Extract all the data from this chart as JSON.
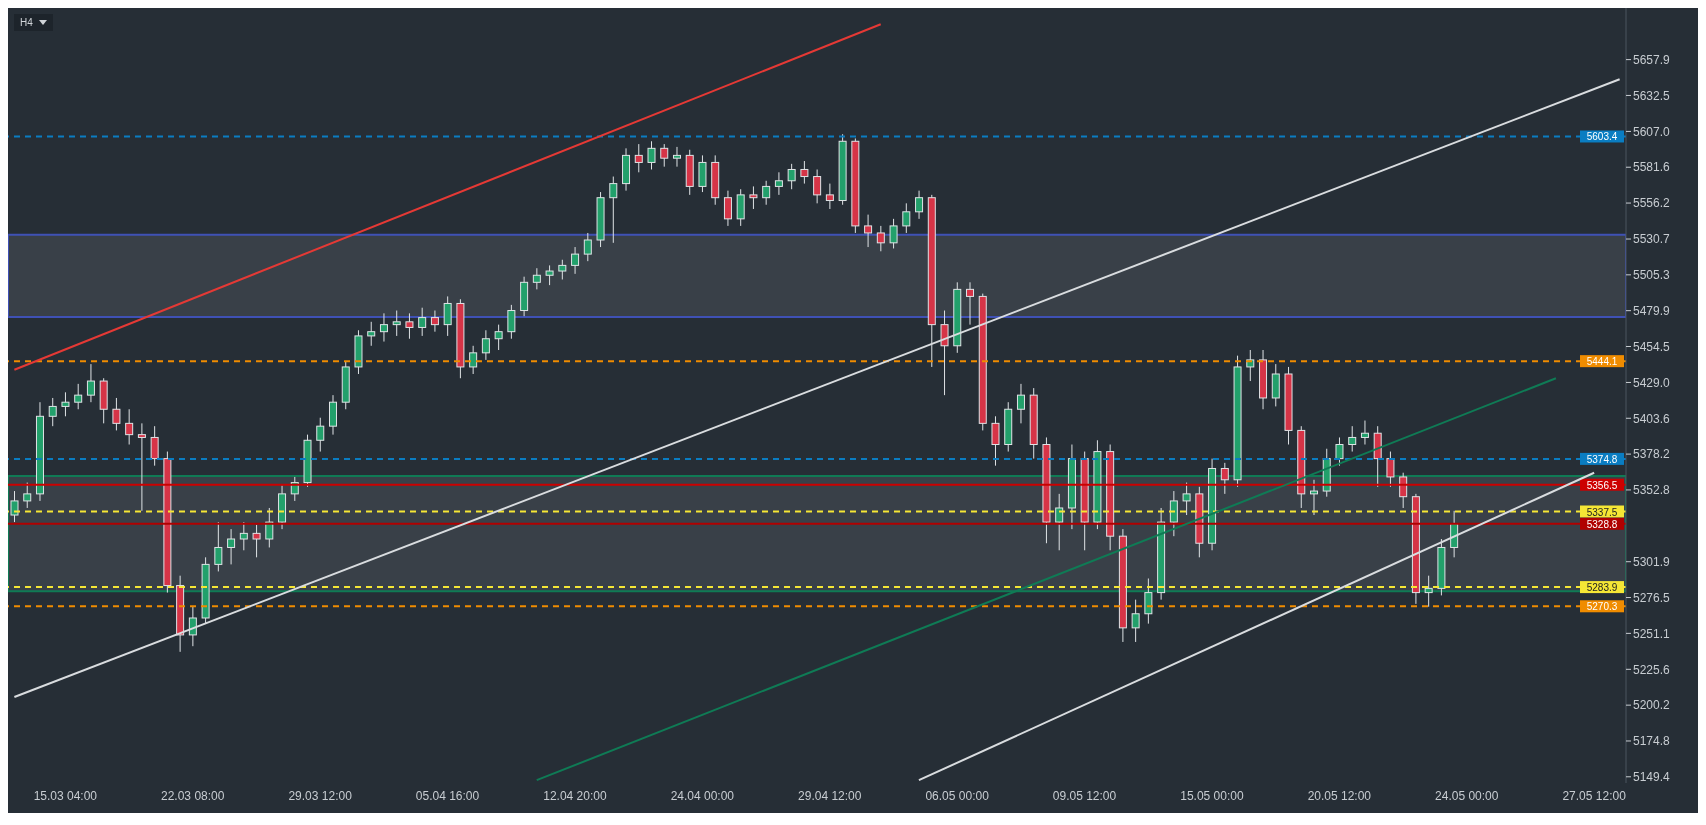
{
  "chart_data": {
    "type": "candlestick",
    "categories": [
      null,
      null,
      null,
      null,
      "15.03 04:00",
      null,
      null,
      null,
      null,
      null,
      null,
      null,
      null,
      null,
      "22.03 08:00",
      null,
      null,
      null,
      null,
      null,
      null,
      null,
      null,
      null,
      "29.03 12:00",
      null,
      null,
      null,
      null,
      null,
      null,
      null,
      null,
      null,
      "05.04 16:00",
      null,
      null,
      null,
      null,
      null,
      null,
      null,
      null,
      null,
      "12.04 20:00",
      null,
      null,
      null,
      null,
      null,
      null,
      null,
      null,
      null,
      "24.04 00:00",
      null,
      null,
      null,
      null,
      null,
      null,
      null,
      null,
      null,
      "29.04 12:00",
      null,
      null,
      null,
      null,
      null,
      null,
      null,
      null,
      null,
      "06.05 00:00",
      null,
      null,
      null,
      null,
      null,
      null,
      null,
      null,
      null,
      "09.05 12:00",
      null,
      null,
      null,
      null,
      null,
      null,
      null,
      null,
      null,
      "15.05 00:00",
      null,
      null,
      null,
      null,
      null,
      null,
      null,
      null,
      null,
      "20.05 12:00",
      null,
      null,
      null,
      null,
      null,
      null,
      null,
      null,
      null,
      "24.05 00:00",
      null,
      null,
      null,
      null,
      null,
      null,
      null,
      null,
      null,
      "27.05 12:00",
      null,
      null
    ],
    "ohlc": [
      [
        5335,
        5352,
        5330,
        5345
      ],
      [
        5345,
        5358,
        5340,
        5350
      ],
      [
        5350,
        5415,
        5345,
        5405
      ],
      [
        5405,
        5418,
        5398,
        5412
      ],
      [
        5412,
        5422,
        5405,
        5415
      ],
      [
        5415,
        5428,
        5410,
        5420
      ],
      [
        5420,
        5442,
        5415,
        5430
      ],
      [
        5430,
        5432,
        5400,
        5410
      ],
      [
        5410,
        5418,
        5395,
        5400
      ],
      [
        5400,
        5410,
        5385,
        5392
      ],
      [
        5392,
        5400,
        5338,
        5390
      ],
      [
        5390,
        5398,
        5370,
        5375
      ],
      [
        5375,
        5380,
        5280,
        5285
      ],
      [
        5285,
        5292,
        5238,
        5250
      ],
      [
        5250,
        5270,
        5242,
        5262
      ],
      [
        5262,
        5305,
        5258,
        5300
      ],
      [
        5300,
        5330,
        5295,
        5312
      ],
      [
        5312,
        5325,
        5300,
        5318
      ],
      [
        5318,
        5330,
        5310,
        5322
      ],
      [
        5322,
        5328,
        5305,
        5318
      ],
      [
        5318,
        5340,
        5312,
        5330
      ],
      [
        5330,
        5356,
        5325,
        5350
      ],
      [
        5350,
        5362,
        5345,
        5358
      ],
      [
        5358,
        5392,
        5355,
        5388
      ],
      [
        5388,
        5404,
        5380,
        5398
      ],
      [
        5398,
        5420,
        5392,
        5415
      ],
      [
        5415,
        5444,
        5410,
        5440
      ],
      [
        5440,
        5466,
        5435,
        5462
      ],
      [
        5462,
        5472,
        5455,
        5465
      ],
      [
        5465,
        5478,
        5458,
        5470
      ],
      [
        5470,
        5480,
        5462,
        5472
      ],
      [
        5472,
        5478,
        5460,
        5468
      ],
      [
        5468,
        5482,
        5462,
        5475
      ],
      [
        5475,
        5480,
        5465,
        5470
      ],
      [
        5470,
        5490,
        5462,
        5485
      ],
      [
        5485,
        5488,
        5432,
        5440
      ],
      [
        5440,
        5455,
        5435,
        5450
      ],
      [
        5450,
        5466,
        5445,
        5460
      ],
      [
        5460,
        5470,
        5452,
        5465
      ],
      [
        5465,
        5484,
        5460,
        5480
      ],
      [
        5480,
        5504,
        5476,
        5500
      ],
      [
        5500,
        5510,
        5495,
        5505
      ],
      [
        5505,
        5512,
        5498,
        5508
      ],
      [
        5508,
        5516,
        5502,
        5512
      ],
      [
        5512,
        5525,
        5506,
        5520
      ],
      [
        5520,
        5535,
        5515,
        5530
      ],
      [
        5530,
        5564,
        5525,
        5560
      ],
      [
        5560,
        5575,
        5528,
        5570
      ],
      [
        5570,
        5595,
        5565,
        5590
      ],
      [
        5590,
        5598,
        5578,
        5585
      ],
      [
        5585,
        5600,
        5580,
        5595
      ],
      [
        5595,
        5598,
        5582,
        5588
      ],
      [
        5588,
        5596,
        5582,
        5590
      ],
      [
        5590,
        5594,
        5562,
        5568
      ],
      [
        5568,
        5590,
        5564,
        5585
      ],
      [
        5585,
        5590,
        5555,
        5560
      ],
      [
        5560,
        5565,
        5540,
        5545
      ],
      [
        5545,
        5566,
        5540,
        5562
      ],
      [
        5562,
        5568,
        5552,
        5560
      ],
      [
        5560,
        5572,
        5555,
        5568
      ],
      [
        5568,
        5578,
        5562,
        5572
      ],
      [
        5572,
        5584,
        5566,
        5580
      ],
      [
        5580,
        5586,
        5570,
        5575
      ],
      [
        5575,
        5580,
        5556,
        5562
      ],
      [
        5562,
        5570,
        5552,
        5558
      ],
      [
        5558,
        5605,
        5555,
        5600
      ],
      [
        5600,
        5602,
        5535,
        5540
      ],
      [
        5540,
        5548,
        5525,
        5535
      ],
      [
        5535,
        5540,
        5522,
        5528
      ],
      [
        5528,
        5545,
        5524,
        5540
      ],
      [
        5540,
        5556,
        5535,
        5550
      ],
      [
        5550,
        5565,
        5545,
        5560
      ],
      [
        5560,
        5562,
        5440,
        5470
      ],
      [
        5470,
        5480,
        5420,
        5455
      ],
      [
        5455,
        5500,
        5450,
        5495
      ],
      [
        5495,
        5500,
        5470,
        5490
      ],
      [
        5490,
        5492,
        5395,
        5400
      ],
      [
        5400,
        5405,
        5370,
        5385
      ],
      [
        5385,
        5415,
        5380,
        5410
      ],
      [
        5410,
        5428,
        5400,
        5420
      ],
      [
        5420,
        5425,
        5375,
        5385
      ],
      [
        5385,
        5390,
        5315,
        5330
      ],
      [
        5330,
        5350,
        5310,
        5340
      ],
      [
        5340,
        5385,
        5325,
        5375
      ],
      [
        5375,
        5380,
        5310,
        5330
      ],
      [
        5330,
        5388,
        5325,
        5380
      ],
      [
        5380,
        5385,
        5310,
        5320
      ],
      [
        5320,
        5325,
        5245,
        5255
      ],
      [
        5255,
        5275,
        5245,
        5265
      ],
      [
        5265,
        5290,
        5258,
        5280
      ],
      [
        5280,
        5340,
        5275,
        5330
      ],
      [
        5330,
        5352,
        5320,
        5345
      ],
      [
        5345,
        5358,
        5335,
        5350
      ],
      [
        5350,
        5355,
        5305,
        5315
      ],
      [
        5315,
        5375,
        5310,
        5368
      ],
      [
        5368,
        5372,
        5350,
        5360
      ],
      [
        5360,
        5448,
        5355,
        5440
      ],
      [
        5440,
        5452,
        5430,
        5445
      ],
      [
        5445,
        5452,
        5410,
        5418
      ],
      [
        5418,
        5442,
        5412,
        5435
      ],
      [
        5435,
        5440,
        5385,
        5395
      ],
      [
        5395,
        5398,
        5340,
        5350
      ],
      [
        5350,
        5360,
        5335,
        5352
      ],
      [
        5352,
        5382,
        5348,
        5375
      ],
      [
        5375,
        5390,
        5370,
        5385
      ],
      [
        5385,
        5398,
        5380,
        5390
      ],
      [
        5390,
        5402,
        5385,
        5393
      ],
      [
        5393,
        5398,
        5355,
        5375
      ],
      [
        5375,
        5380,
        5355,
        5362
      ],
      [
        5362,
        5365,
        5340,
        5348
      ],
      [
        5348,
        5350,
        5272,
        5280
      ],
      [
        5280,
        5292,
        5270,
        5283
      ],
      [
        5283,
        5318,
        5278,
        5312
      ],
      [
        5312,
        5338,
        5305,
        5328.8
      ],
      null,
      null,
      null,
      null,
      null,
      null,
      null,
      null,
      null,
      null,
      null,
      null,
      null
    ],
    "series": [
      {
        "type": "line",
        "color": "#e53935",
        "values": [
          5438,
          null,
          null,
          null,
          null,
          null,
          null,
          null,
          null,
          null,
          null,
          null,
          null,
          null,
          null,
          null,
          null,
          null,
          null,
          null,
          null,
          null,
          null,
          null,
          null,
          null,
          null,
          null,
          null,
          null,
          null,
          null,
          null,
          null,
          null,
          null,
          null,
          null,
          null,
          null,
          null,
          null,
          null,
          null,
          null,
          null,
          null,
          null,
          null,
          null,
          null,
          null,
          null,
          null,
          null,
          null,
          null,
          null,
          null,
          null,
          null,
          null,
          null,
          null,
          null,
          null,
          null,
          null,
          5683,
          null,
          null,
          null,
          null,
          null,
          null,
          null,
          null,
          null,
          null,
          null,
          null,
          null,
          null,
          null,
          null,
          null,
          null,
          null,
          null,
          null,
          null,
          null,
          null,
          null,
          null,
          null,
          null,
          null,
          null,
          null,
          null,
          null,
          null,
          null,
          null,
          null,
          null,
          null,
          null,
          null,
          null,
          null,
          null,
          null,
          null,
          null,
          null,
          null,
          null,
          null,
          null,
          null,
          null,
          null,
          null,
          null,
          null
        ]
      },
      {
        "type": "line",
        "color": "#d9dcdf",
        "values": [
          5206,
          null,
          null,
          null,
          null,
          null,
          null,
          null,
          null,
          null,
          null,
          null,
          null,
          null,
          null,
          null,
          null,
          null,
          null,
          null,
          null,
          null,
          null,
          null,
          null,
          null,
          null,
          null,
          null,
          null,
          null,
          null,
          null,
          null,
          null,
          null,
          null,
          null,
          null,
          null,
          null,
          null,
          null,
          null,
          null,
          null,
          null,
          null,
          null,
          null,
          null,
          null,
          null,
          null,
          null,
          null,
          null,
          null,
          null,
          null,
          null,
          null,
          null,
          null,
          null,
          null,
          null,
          null,
          null,
          null,
          null,
          null,
          null,
          null,
          null,
          null,
          null,
          null,
          null,
          null,
          null,
          null,
          null,
          null,
          null,
          null,
          null,
          null,
          null,
          null,
          null,
          null,
          null,
          null,
          null,
          null,
          null,
          null,
          null,
          null,
          null,
          null,
          null,
          null,
          null,
          null,
          null,
          null,
          null,
          null,
          null,
          null,
          null,
          null,
          null,
          null,
          null,
          null,
          null,
          null,
          null,
          null,
          null,
          null,
          null,
          null,
          5644
        ]
      },
      {
        "type": "line",
        "color": "#d9dcdf",
        "values": [
          null,
          null,
          null,
          null,
          null,
          null,
          null,
          null,
          null,
          null,
          null,
          null,
          null,
          null,
          null,
          null,
          null,
          null,
          null,
          null,
          null,
          null,
          null,
          null,
          null,
          null,
          null,
          null,
          null,
          null,
          null,
          null,
          null,
          null,
          null,
          null,
          null,
          null,
          null,
          null,
          null,
          null,
          null,
          null,
          null,
          null,
          null,
          null,
          null,
          null,
          null,
          null,
          null,
          null,
          null,
          null,
          null,
          null,
          null,
          null,
          null,
          null,
          null,
          null,
          null,
          null,
          null,
          null,
          null,
          null,
          null,
          5147,
          null,
          null,
          null,
          null,
          null,
          null,
          null,
          null,
          null,
          null,
          null,
          null,
          null,
          null,
          null,
          null,
          null,
          null,
          null,
          null,
          null,
          null,
          null,
          null,
          null,
          null,
          null,
          null,
          null,
          null,
          null,
          null,
          null,
          null,
          null,
          null,
          null,
          null,
          null,
          null,
          null,
          null,
          null,
          null,
          null,
          null,
          null,
          null,
          null,
          null,
          null,
          null,
          5365,
          null,
          null
        ]
      },
      {
        "type": "line",
        "color": "#0f7b55",
        "values": [
          null,
          null,
          null,
          null,
          null,
          null,
          null,
          null,
          null,
          null,
          null,
          null,
          null,
          null,
          null,
          null,
          null,
          null,
          null,
          null,
          null,
          null,
          null,
          null,
          null,
          null,
          null,
          null,
          null,
          null,
          null,
          null,
          null,
          null,
          null,
          null,
          null,
          null,
          null,
          null,
          null,
          5147,
          null,
          null,
          null,
          null,
          null,
          null,
          null,
          null,
          null,
          null,
          null,
          null,
          null,
          null,
          null,
          null,
          null,
          null,
          null,
          null,
          null,
          null,
          null,
          null,
          null,
          null,
          null,
          null,
          null,
          null,
          null,
          null,
          null,
          null,
          null,
          null,
          null,
          null,
          null,
          null,
          null,
          null,
          null,
          null,
          null,
          null,
          null,
          null,
          null,
          null,
          null,
          null,
          null,
          null,
          null,
          null,
          null,
          null,
          null,
          null,
          null,
          null,
          null,
          null,
          null,
          null,
          null,
          null,
          null,
          null,
          null,
          null,
          null,
          null,
          null,
          null,
          null,
          null,
          null,
          5432,
          null,
          null,
          null,
          null,
          null
        ]
      }
    ],
    "ylim": [
      5145,
      5694.5
    ],
    "yticks": [
      5149.4,
      5174.8,
      5200.2,
      5225.6,
      5251.1,
      5276.5,
      5301.9,
      5352.8,
      5378.2,
      5403.6,
      {
        "value": 5429,
        "label": "5429.0"
      },
      5454.5,
      5479.9,
      5505.3,
      5530.7,
      5556.2,
      5581.6,
      {
        "value": 5607,
        "label": "5607.0"
      },
      5632.5,
      5657.9
    ],
    "ref_lines": [
      {
        "axis": "y",
        "value": 5603.4,
        "label": "5603.4",
        "color": "#0a7dc2",
        "line_style": "dashed"
      },
      {
        "axis": "y",
        "value": 5444.1,
        "label": "5444.1",
        "color": "#f08c00",
        "line_style": "dashed"
      },
      {
        "axis": "y",
        "value": 5374.8,
        "label": "5374.8",
        "color": "#0a7dc2",
        "line_style": "dashed"
      },
      {
        "axis": "y",
        "value": 5356.5,
        "label": "5356.5",
        "color": "#cc0000",
        "line_style": "solid"
      },
      {
        "axis": "y",
        "value": 5337.5,
        "label": "5337.5",
        "color": "#f5e635",
        "line_style": "dashed"
      },
      {
        "axis": "y",
        "value": 5328.8,
        "label": "5328.8",
        "color": "#b00000",
        "line_style": "solid"
      },
      {
        "axis": "y",
        "value": 5283.9,
        "label": "5283.9",
        "color": "#f5e635",
        "line_style": "dashed"
      },
      {
        "axis": "y",
        "value": 5270.3,
        "label": "5270.3",
        "color": "#f08c00",
        "line_style": "dashed"
      }
    ],
    "bands": [
      {
        "axis": "y",
        "from": 5475.4,
        "to": 5533.8,
        "color": "#3f51b5"
      },
      {
        "axis": "y",
        "from": 5281,
        "to": 5362.6,
        "color": "#0f7b55"
      }
    ],
    "annotations": [
      "H4"
    ]
  }
}
